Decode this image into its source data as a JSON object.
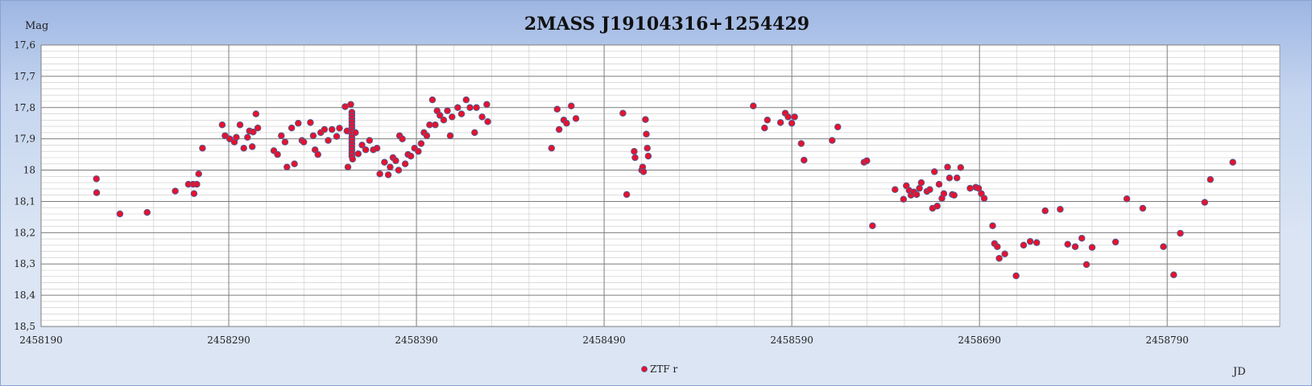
{
  "chart_data": {
    "type": "scatter",
    "title": "2MASS J19104316+1254429",
    "ylabel": "Mag",
    "xlabel": "JD",
    "x_ticks": [
      2458190,
      2458290,
      2458390,
      2458490,
      2458590,
      2458690,
      2458790
    ],
    "y_ticks": [
      "17,6",
      "17,7",
      "17,8",
      "17,9",
      "18",
      "18,1",
      "18,2",
      "18,3",
      "18,4",
      "18,5"
    ],
    "xlim": [
      2458190,
      2458850
    ],
    "ylim": [
      17.6,
      18.5
    ],
    "y_inverted": true,
    "grid": true,
    "legend_position": "bottom-center",
    "marker_color": "#e8112d",
    "marker_edge_color": "#4a5d94",
    "series": [
      {
        "name": "ZTF r",
        "points": [
          [
            2458219.5,
            18.028
          ],
          [
            2458219.6,
            18.072
          ],
          [
            2458232,
            18.14
          ],
          [
            2458246.5,
            18.135
          ],
          [
            2458261.5,
            18.067
          ],
          [
            2458268.5,
            18.045
          ],
          [
            2458271,
            18.045
          ],
          [
            2458271.5,
            18.075
          ],
          [
            2458273,
            18.045
          ],
          [
            2458274,
            18.012
          ],
          [
            2458276,
            17.93
          ],
          [
            2458286.5,
            17.855
          ],
          [
            2458288,
            17.89
          ],
          [
            2458290.5,
            17.9
          ],
          [
            2458293,
            17.91
          ],
          [
            2458294,
            17.895
          ],
          [
            2458296,
            17.855
          ],
          [
            2458298,
            17.93
          ],
          [
            2458300,
            17.895
          ],
          [
            2458301,
            17.875
          ],
          [
            2458302.5,
            17.925
          ],
          [
            2458303,
            17.878
          ],
          [
            2458304.5,
            17.82
          ],
          [
            2458305.5,
            17.865
          ],
          [
            2458314,
            17.938
          ],
          [
            2458316,
            17.95
          ],
          [
            2458318,
            17.89
          ],
          [
            2458320,
            17.91
          ],
          [
            2458321,
            17.99
          ],
          [
            2458323.5,
            17.865
          ],
          [
            2458325,
            17.98
          ],
          [
            2458327,
            17.85
          ],
          [
            2458329,
            17.905
          ],
          [
            2458330,
            17.91
          ],
          [
            2458333.5,
            17.848
          ],
          [
            2458335,
            17.89
          ],
          [
            2458336,
            17.935
          ],
          [
            2458337.5,
            17.95
          ],
          [
            2458339,
            17.88
          ],
          [
            2458341,
            17.87
          ],
          [
            2458343,
            17.905
          ],
          [
            2458345,
            17.87
          ],
          [
            2458347.5,
            17.892
          ],
          [
            2458349,
            17.866
          ],
          [
            2458352,
            17.797
          ],
          [
            2458353,
            17.875
          ],
          [
            2458353.5,
            17.99
          ],
          [
            2458355,
            17.79
          ],
          [
            2458355.6,
            17.815
          ],
          [
            2458355.6,
            17.825
          ],
          [
            2458355.6,
            17.835
          ],
          [
            2458355.6,
            17.845
          ],
          [
            2458355.6,
            17.855
          ],
          [
            2458355.6,
            17.865
          ],
          [
            2458355.6,
            17.875
          ],
          [
            2458355.6,
            17.885
          ],
          [
            2458355.6,
            17.895
          ],
          [
            2458355.6,
            17.905
          ],
          [
            2458355.6,
            17.915
          ],
          [
            2458355.6,
            17.925
          ],
          [
            2458355.6,
            17.935
          ],
          [
            2458355.6,
            17.945
          ],
          [
            2458355.6,
            17.955
          ],
          [
            2458356,
            17.965
          ],
          [
            2458357.5,
            17.88
          ],
          [
            2458359,
            17.948
          ],
          [
            2458361,
            17.92
          ],
          [
            2458363,
            17.935
          ],
          [
            2458365,
            17.905
          ],
          [
            2458367,
            17.935
          ],
          [
            2458369,
            17.93
          ],
          [
            2458370.5,
            18.012
          ],
          [
            2458373,
            17.975
          ],
          [
            2458375,
            18.015
          ],
          [
            2458376,
            17.99
          ],
          [
            2458377.5,
            17.96
          ],
          [
            2458379,
            17.97
          ],
          [
            2458380.5,
            18.0
          ],
          [
            2458381,
            17.89
          ],
          [
            2458382.5,
            17.9
          ],
          [
            2458384,
            17.98
          ],
          [
            2458385.5,
            17.95
          ],
          [
            2458387,
            17.955
          ],
          [
            2458389,
            17.93
          ],
          [
            2458391,
            17.94
          ],
          [
            2458392.5,
            17.915
          ],
          [
            2458394,
            17.88
          ],
          [
            2458395.5,
            17.89
          ],
          [
            2458397,
            17.855
          ],
          [
            2458398.5,
            17.775
          ],
          [
            2458400,
            17.855
          ],
          [
            2458401,
            17.81
          ],
          [
            2458402.5,
            17.825
          ],
          [
            2458404.5,
            17.84
          ],
          [
            2458406.5,
            17.81
          ],
          [
            2458408,
            17.89
          ],
          [
            2458409,
            17.83
          ],
          [
            2458412,
            17.8
          ],
          [
            2458414,
            17.82
          ],
          [
            2458416.5,
            17.775
          ],
          [
            2458418.5,
            17.8
          ],
          [
            2458421,
            17.88
          ],
          [
            2458422,
            17.8
          ],
          [
            2458425,
            17.83
          ],
          [
            2458427.5,
            17.79
          ],
          [
            2458428,
            17.845
          ],
          [
            2458462,
            17.93
          ],
          [
            2458465,
            17.805
          ],
          [
            2458466,
            17.87
          ],
          [
            2458468.5,
            17.84
          ],
          [
            2458470,
            17.85
          ],
          [
            2458472.5,
            17.795
          ],
          [
            2458475,
            17.835
          ],
          [
            2458500,
            17.818
          ],
          [
            2458502,
            18.078
          ],
          [
            2458506,
            17.94
          ],
          [
            2458506.5,
            17.96
          ],
          [
            2458510,
            18.0
          ],
          [
            2458510.5,
            17.99
          ],
          [
            2458511,
            18.005
          ],
          [
            2458512,
            17.838
          ],
          [
            2458512.5,
            17.885
          ],
          [
            2458513,
            17.93
          ],
          [
            2458513.5,
            17.955
          ],
          [
            2458569.5,
            17.795
          ],
          [
            2458575.5,
            17.865
          ],
          [
            2458577,
            17.84
          ],
          [
            2458584,
            17.848
          ],
          [
            2458586.5,
            17.818
          ],
          [
            2458588,
            17.83
          ],
          [
            2458590,
            17.85
          ],
          [
            2458591.5,
            17.83
          ],
          [
            2458595,
            17.915
          ],
          [
            2458596.5,
            17.968
          ],
          [
            2458611.5,
            17.905
          ],
          [
            2458614.5,
            17.862
          ],
          [
            2458628.5,
            17.975
          ],
          [
            2458630,
            17.97
          ],
          [
            2458633,
            18.178
          ],
          [
            2458645,
            18.062
          ],
          [
            2458649.5,
            18.093
          ],
          [
            2458651,
            18.05
          ],
          [
            2458652.5,
            18.065
          ],
          [
            2458653.5,
            18.08
          ],
          [
            2458655,
            18.07
          ],
          [
            2458656.5,
            18.078
          ],
          [
            2458658,
            18.058
          ],
          [
            2458659,
            18.04
          ],
          [
            2458662,
            18.068
          ],
          [
            2458663.5,
            18.062
          ],
          [
            2458665,
            18.122
          ],
          [
            2458666,
            18.005
          ],
          [
            2458667.5,
            18.115
          ],
          [
            2458668.5,
            18.045
          ],
          [
            2458670,
            18.09
          ],
          [
            2458671,
            18.075
          ],
          [
            2458673,
            17.99
          ],
          [
            2458674,
            18.025
          ],
          [
            2458675.5,
            18.078
          ],
          [
            2458676.5,
            18.08
          ],
          [
            2458678,
            18.025
          ],
          [
            2458680,
            17.992
          ],
          [
            2458685,
            18.058
          ],
          [
            2458688,
            18.055
          ],
          [
            2458689.5,
            18.058
          ],
          [
            2458691,
            18.075
          ],
          [
            2458692.5,
            18.09
          ],
          [
            2458697,
            18.178
          ],
          [
            2458698,
            18.235
          ],
          [
            2458699.5,
            18.245
          ],
          [
            2458700.5,
            18.282
          ],
          [
            2458703.5,
            18.268
          ],
          [
            2458709.5,
            18.338
          ],
          [
            2458713.5,
            18.24
          ],
          [
            2458717,
            18.228
          ],
          [
            2458720.5,
            18.232
          ],
          [
            2458725,
            18.13
          ],
          [
            2458733,
            18.125
          ],
          [
            2458737,
            18.237
          ],
          [
            2458741,
            18.245
          ],
          [
            2458744.5,
            18.218
          ],
          [
            2458747,
            18.302
          ],
          [
            2458750,
            18.247
          ],
          [
            2458762.5,
            18.23
          ],
          [
            2458768.5,
            18.092
          ],
          [
            2458777,
            18.122
          ],
          [
            2458788,
            18.245
          ],
          [
            2458793.5,
            18.335
          ],
          [
            2458797,
            18.202
          ],
          [
            2458810,
            18.103
          ],
          [
            2458813,
            18.03
          ],
          [
            2458825,
            17.975
          ]
        ]
      }
    ]
  }
}
